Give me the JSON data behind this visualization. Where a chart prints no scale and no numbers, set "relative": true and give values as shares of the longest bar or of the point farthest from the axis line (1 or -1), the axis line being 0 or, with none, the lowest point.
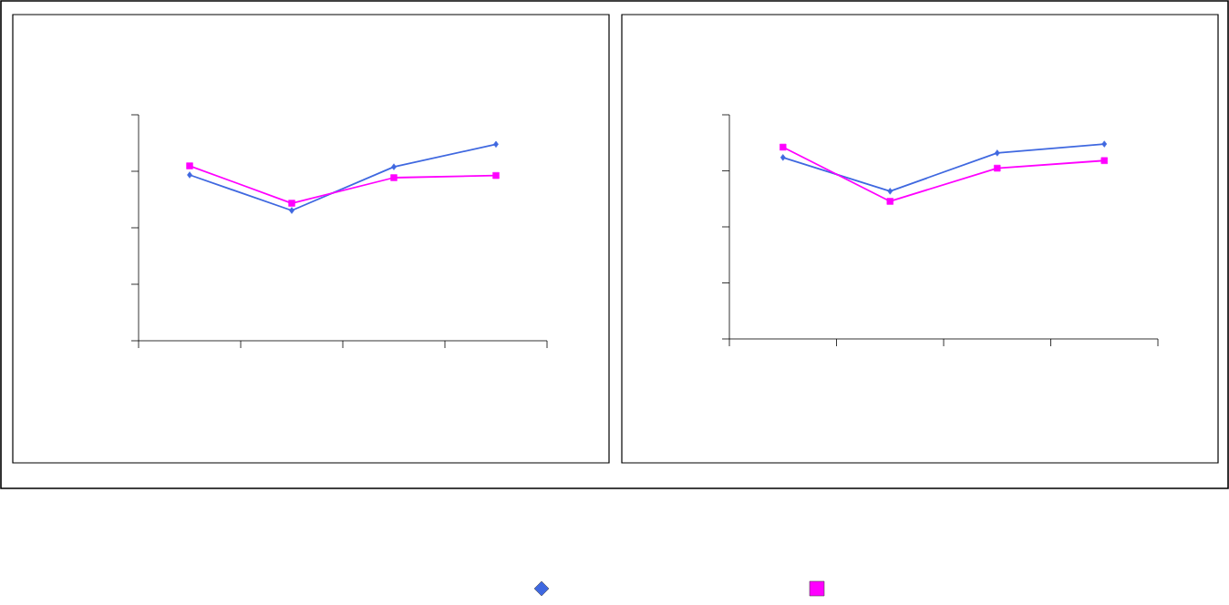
{
  "chart_data": [
    {
      "type": "line",
      "relative": true,
      "categories": [
        null,
        null,
        null,
        null
      ],
      "series": [
        {
          "color": "#3f68e0",
          "marker": "diamond",
          "values": [
            0.844,
            0.663,
            0.885,
            1
          ]
        },
        {
          "color": "#ff00ff",
          "marker": "square",
          "values": [
            0.89,
            0.7,
            0.83,
            0.841
          ]
        }
      ]
    },
    {
      "type": "line",
      "relative": true,
      "categories": [
        null,
        null,
        null,
        null
      ],
      "series": [
        {
          "color": "#3f68e0",
          "marker": "diamond",
          "values": [
            0.931,
            0.758,
            0.954,
            1
          ]
        },
        {
          "color": "#ff00ff",
          "marker": "square",
          "values": [
            0.984,
            0.706,
            0.876,
            0.915
          ]
        }
      ]
    }
  ]
}
